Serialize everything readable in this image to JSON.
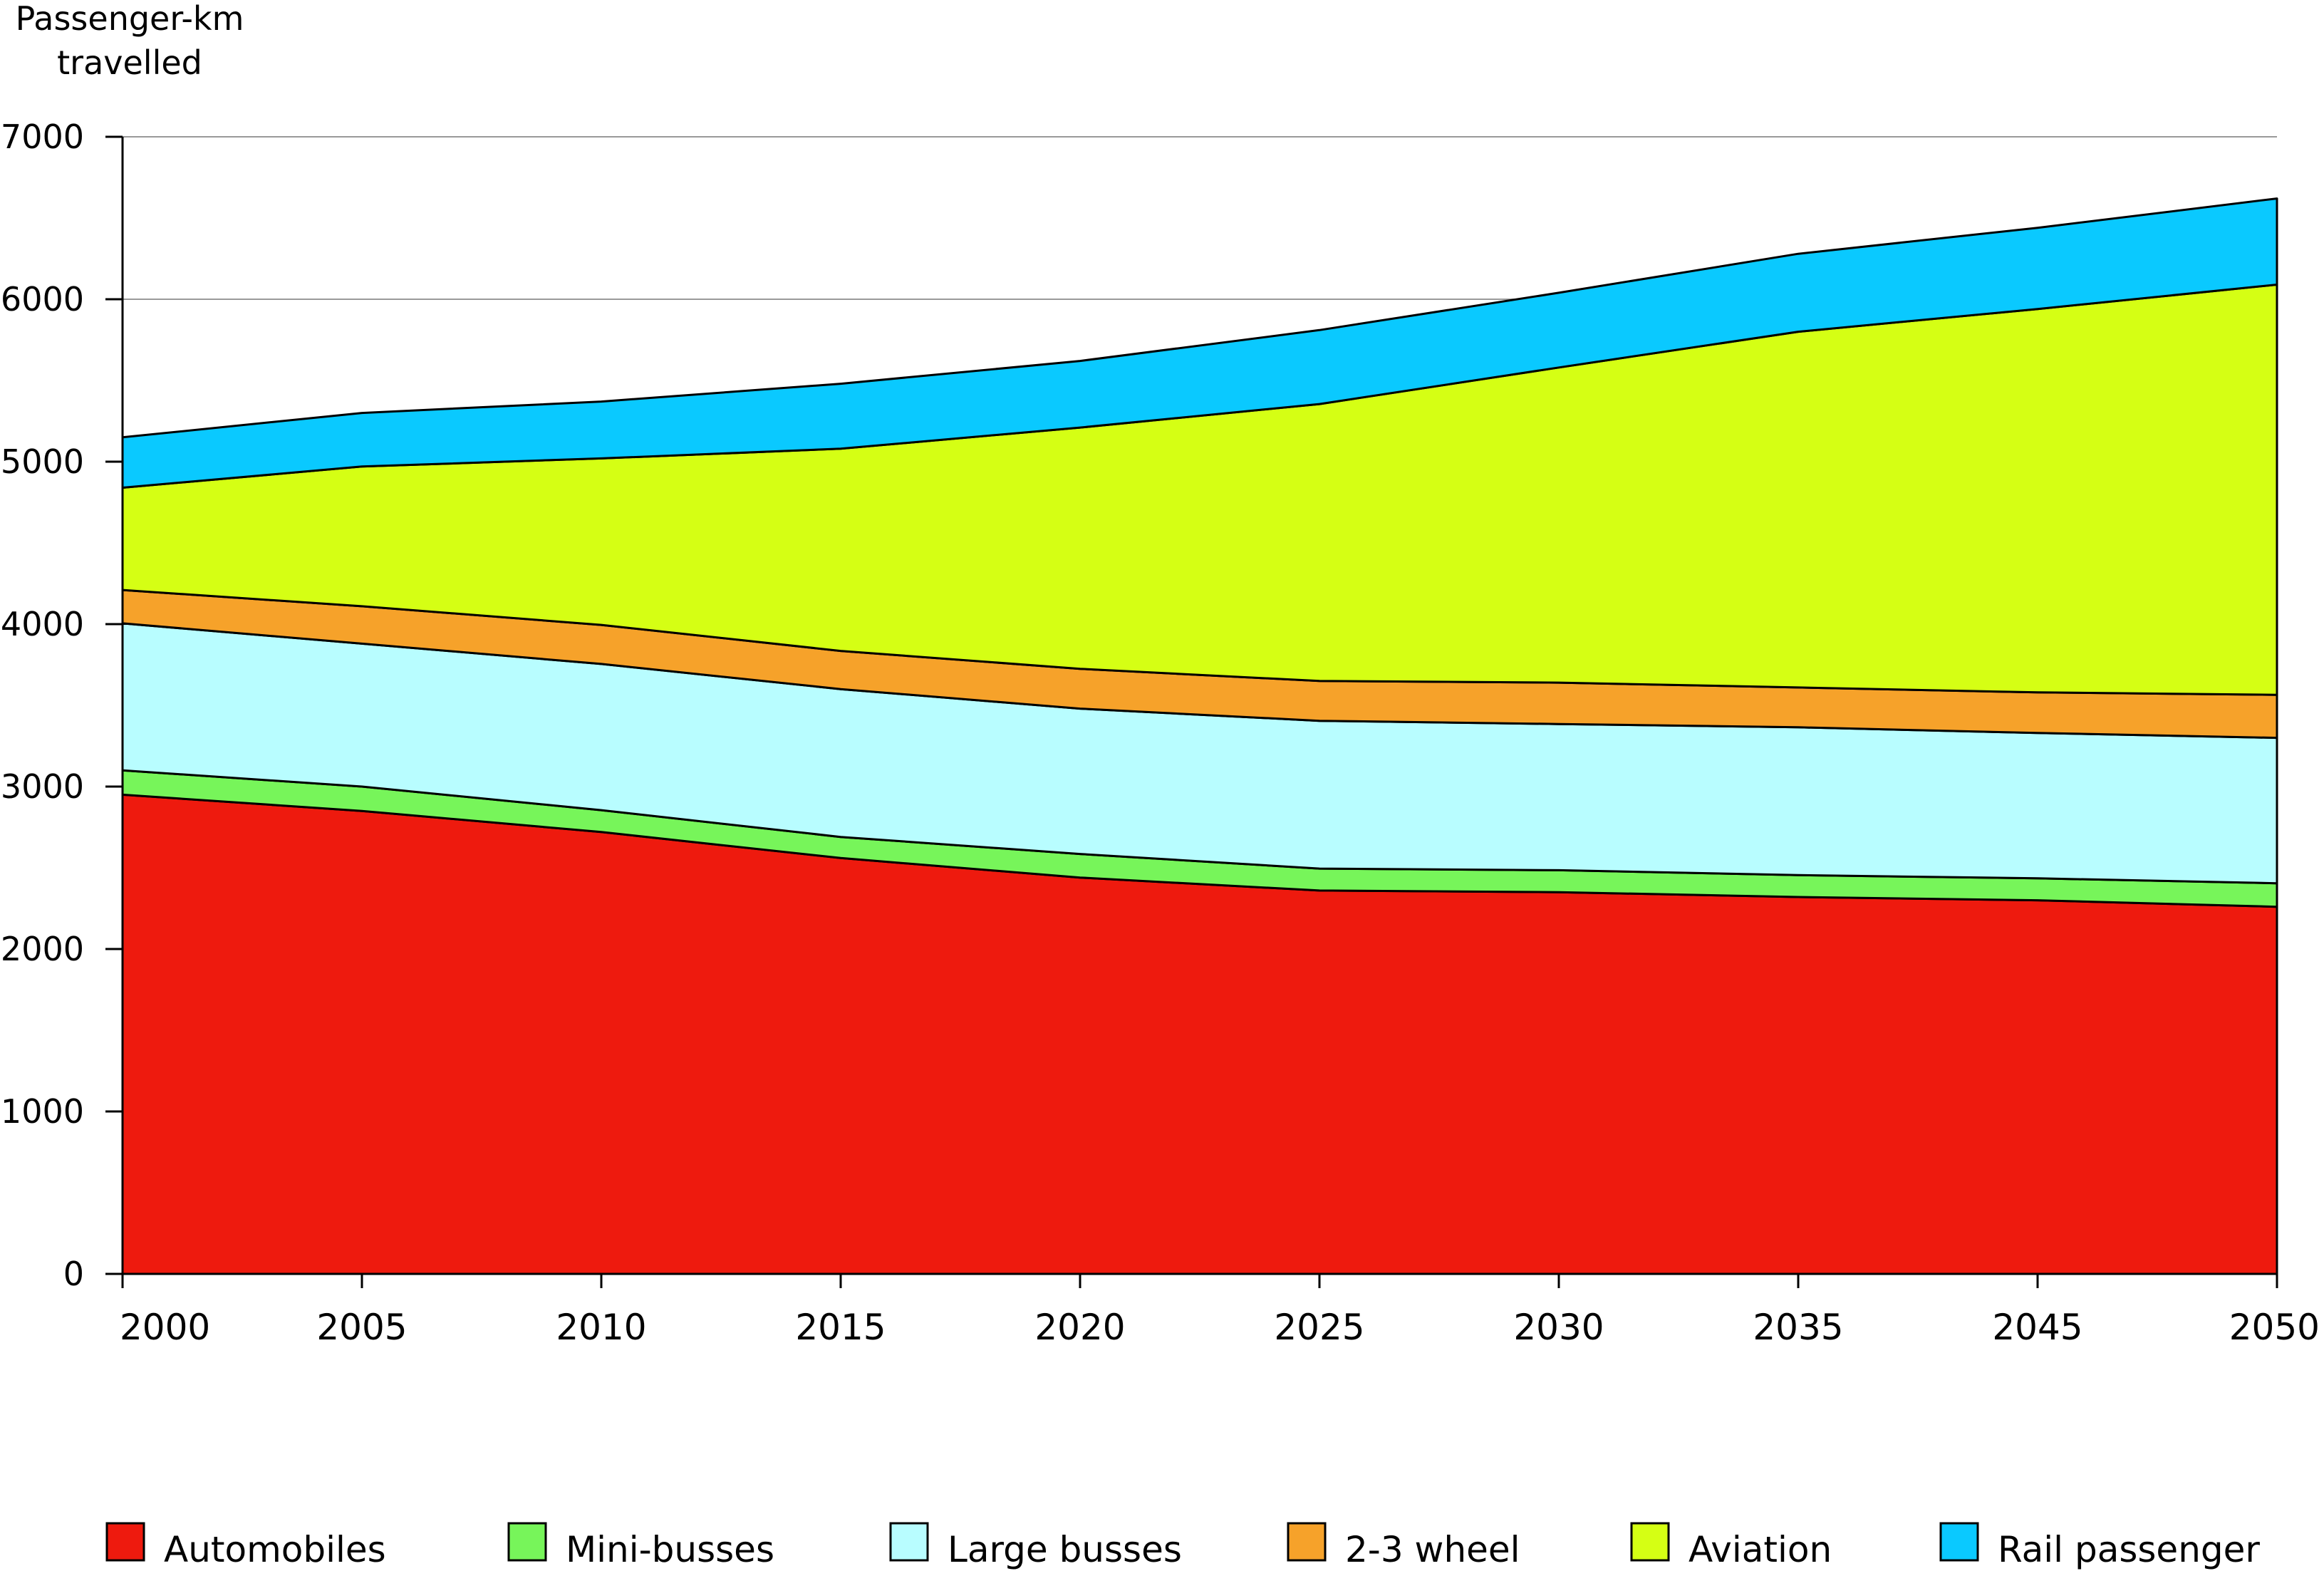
{
  "chart_data": {
    "type": "area",
    "stacked": true,
    "ylabel": "Passenger-km\ntravelled",
    "xlabel": "",
    "title": "",
    "categories": [
      "2000",
      "2005",
      "2010",
      "2015",
      "2020",
      "2025",
      "2030",
      "2035",
      "2045",
      "2050"
    ],
    "ylim": [
      0,
      7000
    ],
    "yticks": [
      0,
      1000,
      2000,
      3000,
      4000,
      5000,
      6000,
      7000
    ],
    "grid": {
      "horizontal": true,
      "vertical": false
    },
    "legend_position": "bottom",
    "series": [
      {
        "name": "Automobiles",
        "color": "#ee1a0e",
        "values": [
          2950,
          2850,
          2720,
          2560,
          2440,
          2360,
          2350,
          2320,
          2300,
          2260
        ]
      },
      {
        "name": "Mini-busses",
        "color": "#77f55a",
        "values": [
          150,
          150,
          135,
          130,
          145,
          135,
          135,
          135,
          135,
          145
        ]
      },
      {
        "name": "Large busses",
        "color": "#b8fdff",
        "values": [
          905,
          880,
          900,
          910,
          895,
          910,
          900,
          910,
          895,
          895
        ]
      },
      {
        "name": "2-3 wheel",
        "color": "#f6a22a",
        "values": [
          205,
          230,
          240,
          235,
          245,
          245,
          255,
          245,
          250,
          265
        ]
      },
      {
        "name": "Aviation",
        "color": "#d5ff14",
        "values": [
          630,
          860,
          1025,
          1245,
          1485,
          1705,
          1940,
          2190,
          2360,
          2525
        ]
      },
      {
        "name": "Rail passenger",
        "color": "#0ac9ff",
        "values": [
          310,
          330,
          350,
          400,
          410,
          455,
          460,
          480,
          500,
          530
        ]
      }
    ]
  }
}
